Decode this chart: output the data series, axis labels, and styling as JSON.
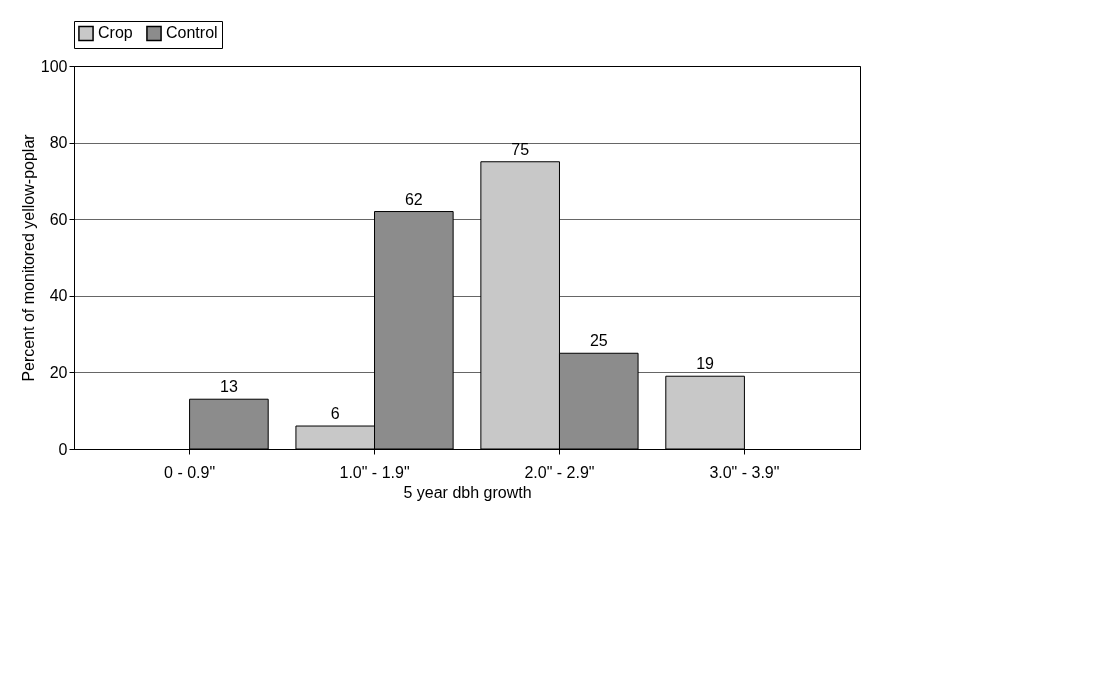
{
  "chart_data": {
    "type": "bar",
    "xlabel": "5 year dbh growth",
    "ylabel": "Percent of monitored yellow-poplar",
    "categories": [
      "0 - 0.9\"",
      "1.0\" - 1.9\"",
      "2.0\" - 2.9\"",
      "3.0\" - 3.9\""
    ],
    "series": [
      {
        "name": "Crop",
        "color": "#c8c8c8",
        "values": [
          null,
          6,
          75,
          19
        ]
      },
      {
        "name": "Control",
        "color": "#8c8c8c",
        "values": [
          13,
          62,
          25,
          null
        ]
      }
    ],
    "ylim": [
      0,
      100
    ],
    "yticks": [
      0,
      20,
      40,
      60,
      80,
      100
    ],
    "grid": "y",
    "legend": "top",
    "data_labels": true
  }
}
